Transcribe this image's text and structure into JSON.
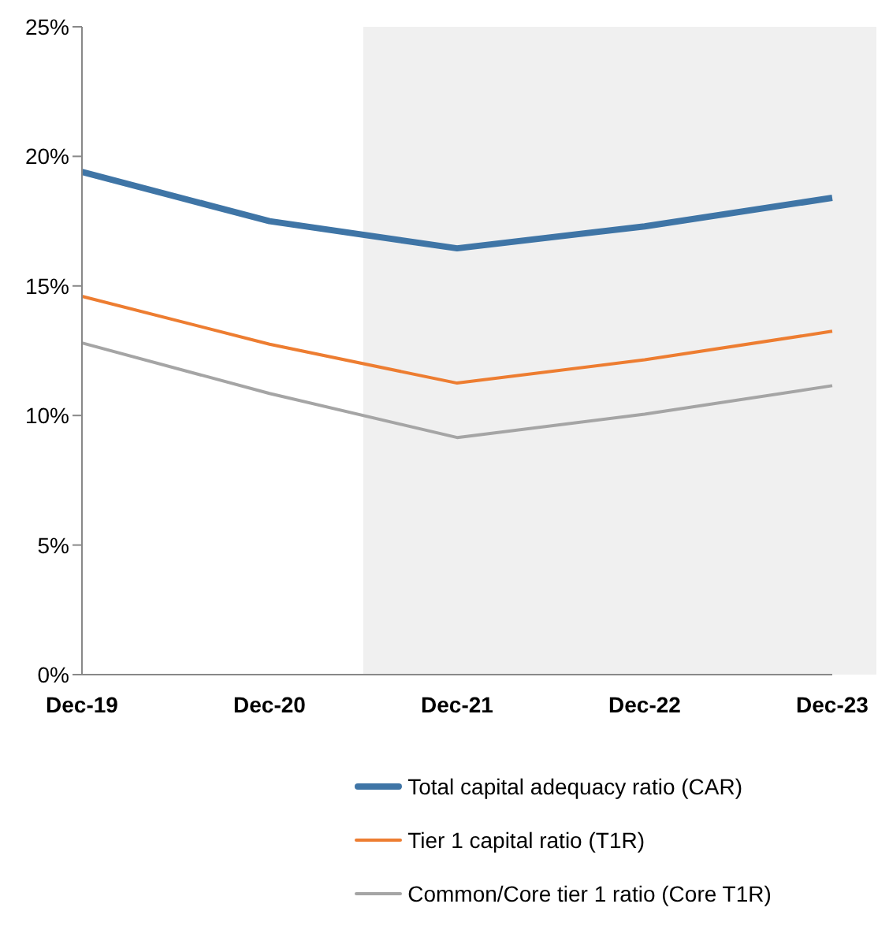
{
  "chart_data": {
    "type": "line",
    "categories": [
      "Dec-19",
      "Dec-20",
      "Dec-21",
      "Dec-22",
      "Dec-23"
    ],
    "series": [
      {
        "name": "Total capital adequacy ratio (CAR)",
        "color": "#3f75a6",
        "values": [
          19.4,
          17.5,
          16.45,
          17.3,
          18.4
        ]
      },
      {
        "name": "Tier 1 capital ratio (T1R)",
        "color": "#ed7d31",
        "values": [
          14.6,
          12.75,
          11.25,
          12.15,
          13.25
        ]
      },
      {
        "name": "Common/Core tier 1 ratio (Core T1R)",
        "color": "#a5a5a5",
        "values": [
          12.8,
          10.85,
          9.15,
          10.05,
          11.15
        ]
      }
    ],
    "ylim": [
      0,
      25
    ],
    "yticks": [
      {
        "value": 0,
        "label": "0%"
      },
      {
        "value": 5,
        "label": "5%"
      },
      {
        "value": 10,
        "label": "10%"
      },
      {
        "value": 15,
        "label": "15%"
      },
      {
        "value": 20,
        "label": "20%"
      },
      {
        "value": 25,
        "label": "25%"
      }
    ],
    "bands": [
      {
        "axis": "x",
        "from": "Dec-21",
        "to": "Dec-23",
        "color": "#f0f0f0"
      }
    ],
    "grid": false,
    "legend": "bottom",
    "marker": "none",
    "line_style": "solid"
  }
}
